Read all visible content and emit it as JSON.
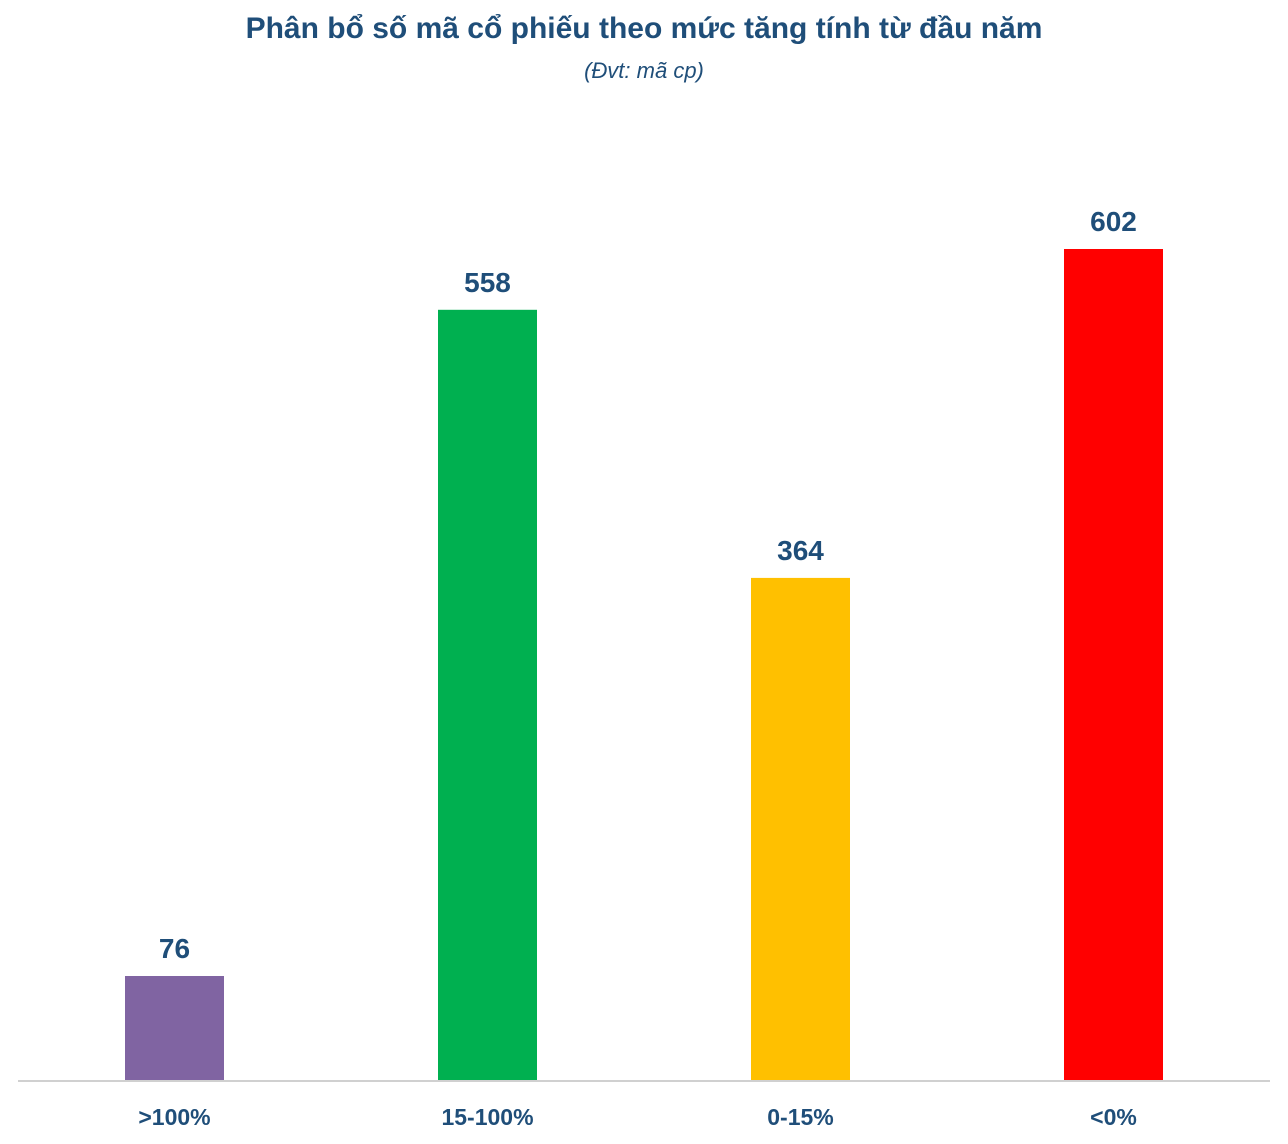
{
  "chart_data": {
    "type": "bar",
    "title": "Phân bổ số mã cổ phiếu theo mức tăng tính từ đầu năm",
    "subtitle": "(Đvt: mã cp)",
    "xlabel": "",
    "ylabel": "",
    "categories": [
      ">100%",
      "15-100%",
      "0-15%",
      "<0%"
    ],
    "values": [
      76,
      558,
      364,
      602
    ],
    "colors": [
      "#8064a2",
      "#00b050",
      "#ffc000",
      "#ff0000"
    ],
    "ylim": [
      0,
      602
    ],
    "grid": false,
    "legend": "none",
    "data_labels": true
  }
}
